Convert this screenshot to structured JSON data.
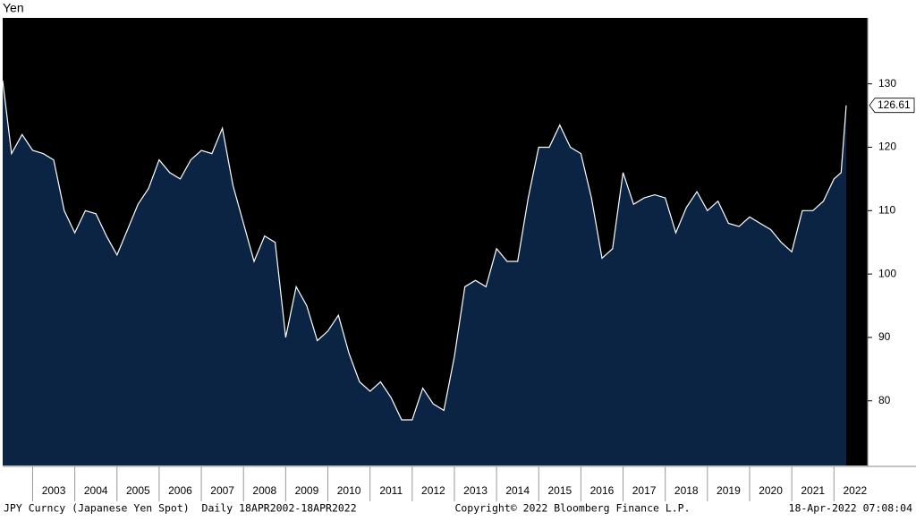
{
  "chart_data": {
    "type": "area",
    "title": "Yen",
    "x": [
      2002.29,
      2002.5,
      2002.75,
      2003.0,
      2003.25,
      2003.5,
      2003.75,
      2004.0,
      2004.25,
      2004.5,
      2004.75,
      2005.0,
      2005.25,
      2005.5,
      2005.75,
      2006.0,
      2006.25,
      2006.5,
      2006.75,
      2007.0,
      2007.25,
      2007.5,
      2007.75,
      2008.0,
      2008.25,
      2008.5,
      2008.75,
      2009.0,
      2009.25,
      2009.5,
      2009.75,
      2010.0,
      2010.25,
      2010.5,
      2010.75,
      2011.0,
      2011.25,
      2011.5,
      2011.75,
      2012.0,
      2012.25,
      2012.5,
      2012.75,
      2013.0,
      2013.25,
      2013.5,
      2013.75,
      2014.0,
      2014.25,
      2014.5,
      2014.75,
      2015.0,
      2015.25,
      2015.5,
      2015.75,
      2016.0,
      2016.25,
      2016.5,
      2016.75,
      2017.0,
      2017.25,
      2017.5,
      2017.75,
      2018.0,
      2018.25,
      2018.5,
      2018.75,
      2019.0,
      2019.25,
      2019.5,
      2019.75,
      2020.0,
      2020.25,
      2020.5,
      2020.75,
      2021.0,
      2021.25,
      2021.5,
      2021.75,
      2022.0,
      2022.17,
      2022.29
    ],
    "series": [
      {
        "name": "JPY Curncy",
        "color": "#0b2444",
        "line_color": "#ffffff",
        "values": [
          130.5,
          119,
          122,
          119.5,
          119,
          118,
          110,
          106.5,
          110,
          109.5,
          106,
          103,
          107,
          111,
          113.5,
          118,
          116,
          115,
          118,
          119.5,
          119,
          123,
          114,
          108,
          102,
          106,
          105,
          90,
          98,
          95,
          89.5,
          91,
          93.5,
          87.5,
          83,
          81.5,
          83,
          80.5,
          77,
          77,
          82,
          79.5,
          78.5,
          87,
          98,
          99,
          98,
          104,
          102,
          102,
          112,
          120,
          120,
          123.5,
          120,
          119,
          112,
          102.5,
          104,
          116,
          111,
          112,
          112.5,
          112,
          106.5,
          110.5,
          113,
          110,
          111.5,
          108,
          107.5,
          109,
          108,
          107,
          105,
          103.5,
          110,
          110,
          111.5,
          115,
          116,
          126.61
        ]
      }
    ],
    "xlim": [
      2002.29,
      2022.8
    ],
    "xticks": [
      2003,
      2004,
      2005,
      2006,
      2007,
      2008,
      2009,
      2010,
      2011,
      2012,
      2013,
      2014,
      2015,
      2016,
      2017,
      2018,
      2019,
      2020,
      2021,
      2022
    ],
    "ylim": [
      69.8,
      140.4
    ],
    "yticks": [
      80,
      90,
      100,
      110,
      120,
      130
    ]
  },
  "footer": {
    "left": "JPY Curncy (Japanese Yen Spot)  Daily 18APR2002-18APR2022",
    "center": "Copyright© 2022 Bloomberg Finance L.P.",
    "right": "18-Apr-2022 07:08:04"
  }
}
